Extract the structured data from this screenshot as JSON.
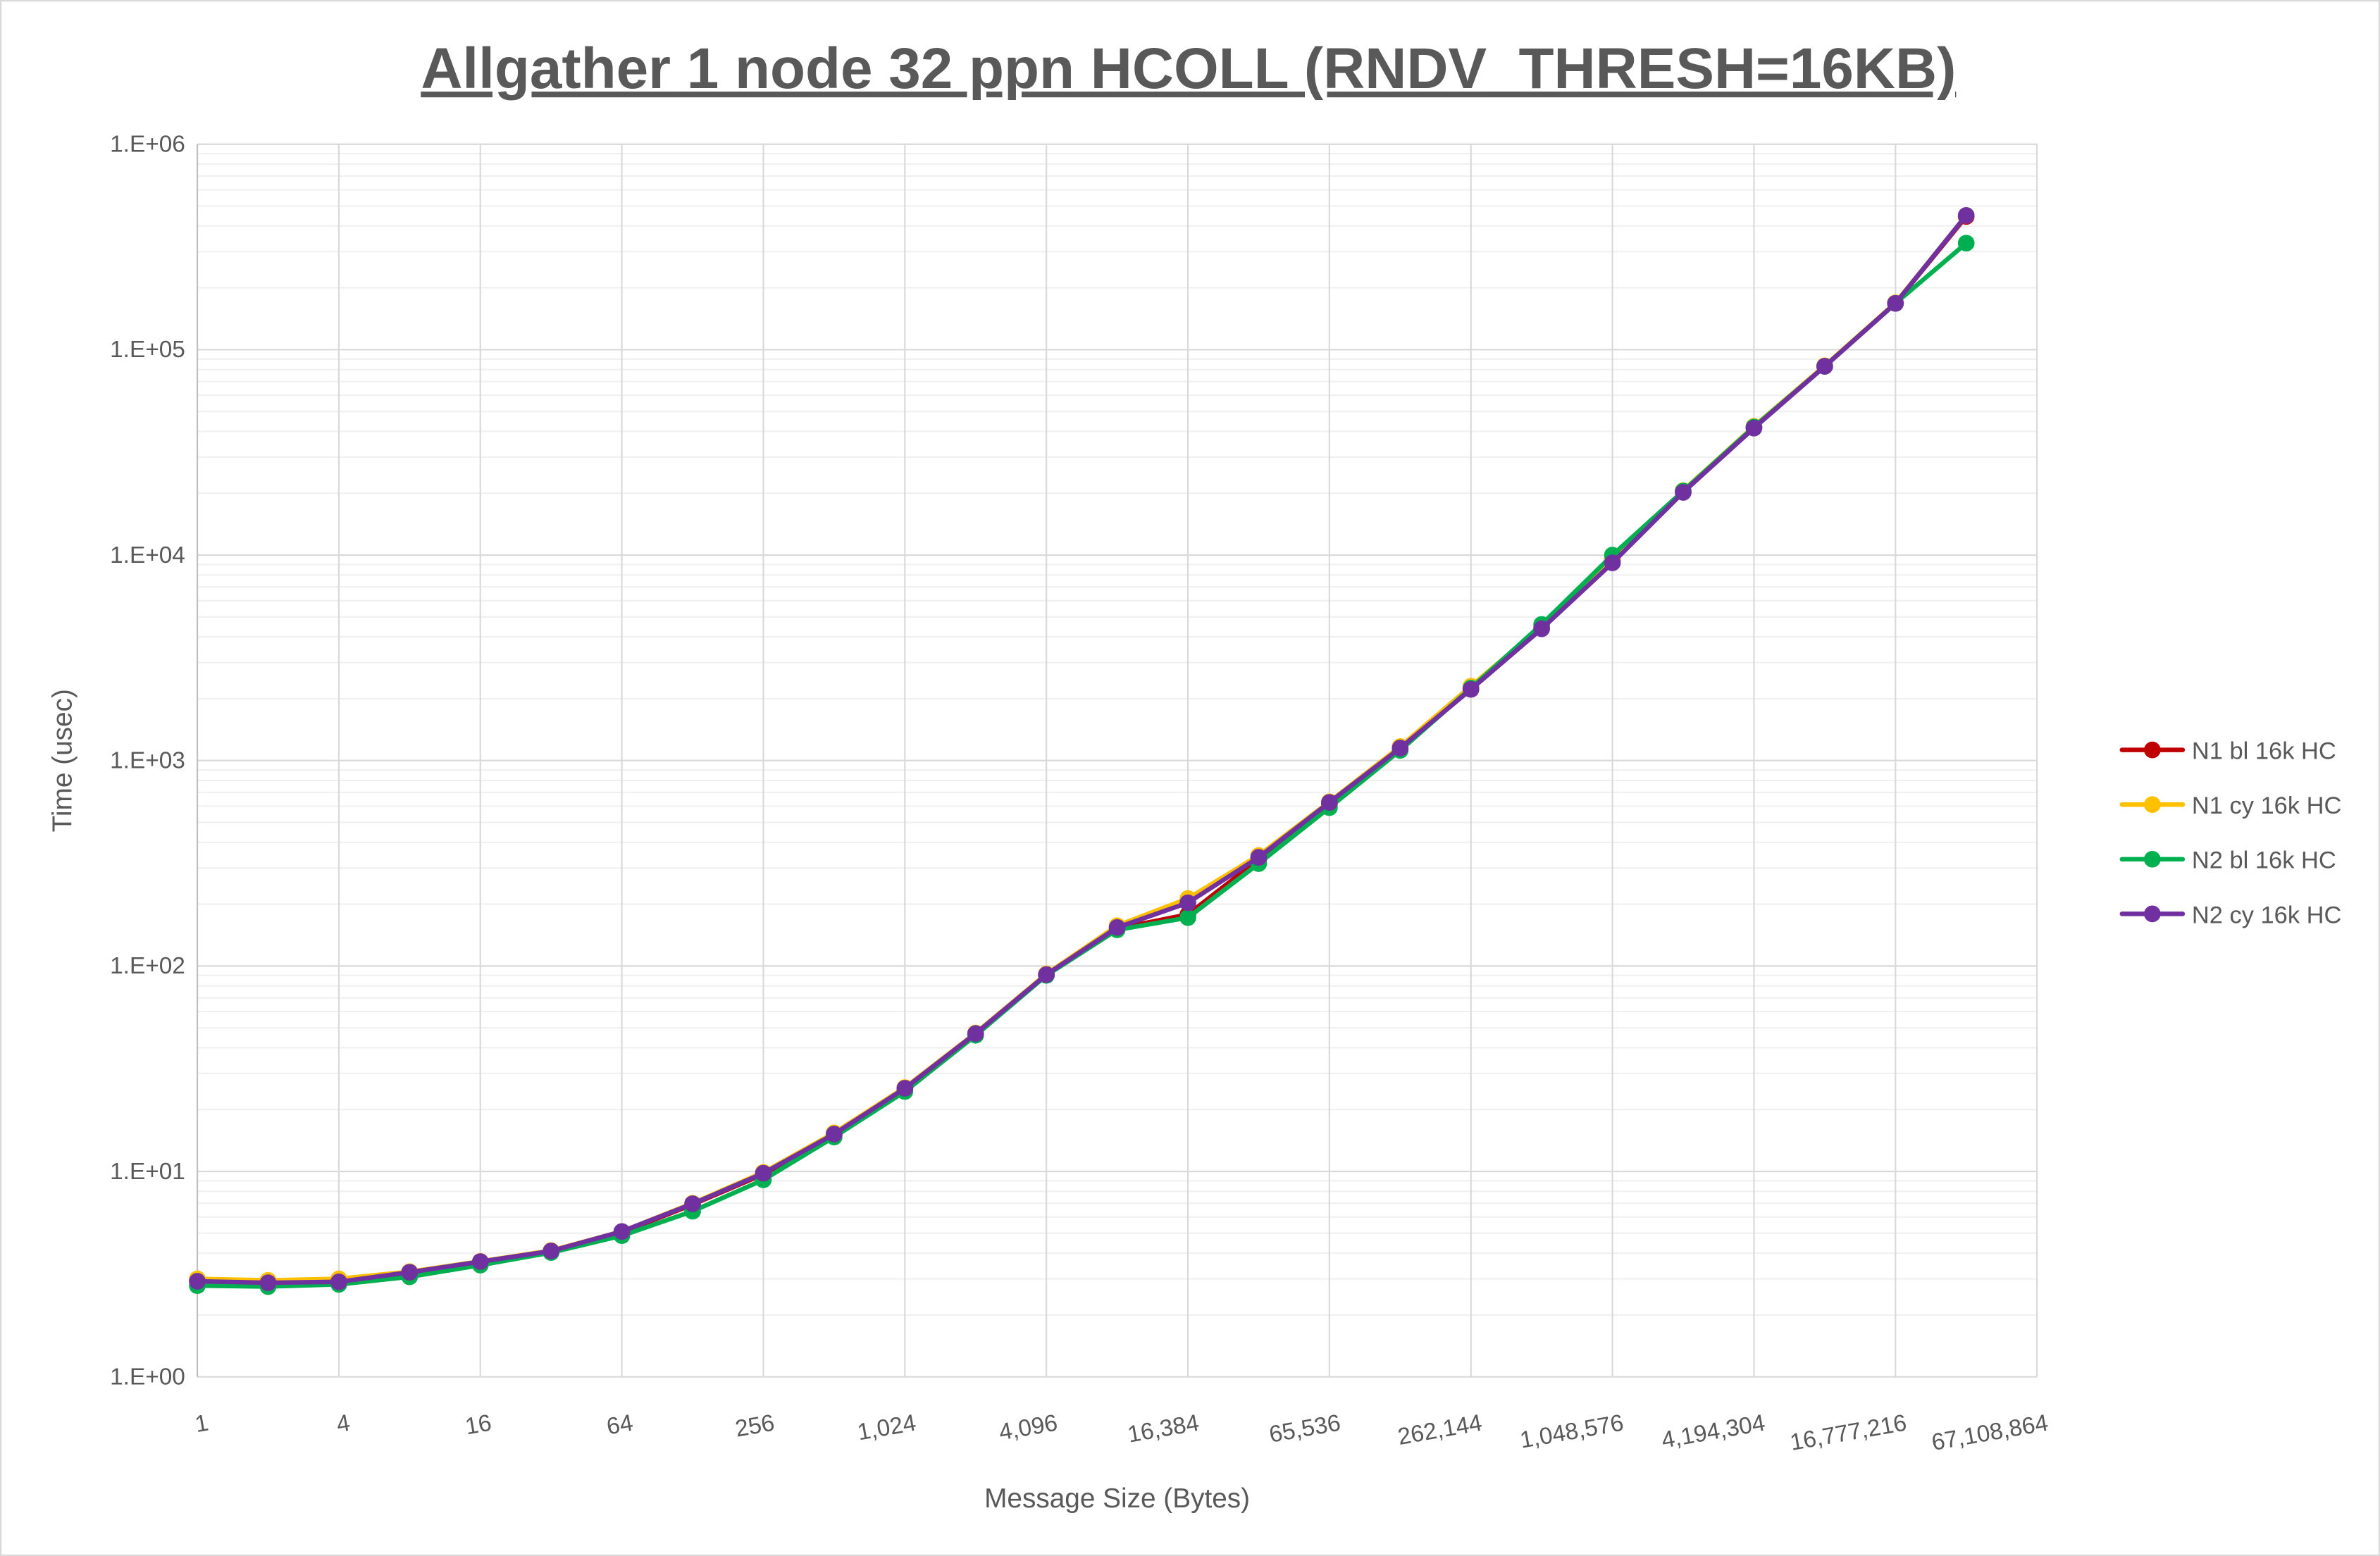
{
  "chart_data": {
    "type": "line",
    "title": "Allgather 1 node 32 ppn HCOLL (RNDV_THRESH=16KB)",
    "xlabel": "Message Size (Bytes)",
    "ylabel": "Time (usec)",
    "x_scale": "log2",
    "y_scale": "log10",
    "xlim": [
      1,
      67108864
    ],
    "ylim": [
      1,
      1000000
    ],
    "grid": true,
    "legend_position": "right",
    "x_tick_labels": [
      "1",
      "4",
      "16",
      "64",
      "256",
      "1,024",
      "4,096",
      "16,384",
      "65,536",
      "262,144",
      "1,048,576",
      "4,194,304",
      "16,777,216",
      "67,108,864"
    ],
    "y_tick_labels": [
      "1.E+00",
      "1.E+01",
      "1.E+02",
      "1.E+03",
      "1.E+04",
      "1.E+05",
      "1.E+06"
    ],
    "x": [
      1,
      2,
      4,
      8,
      16,
      32,
      64,
      128,
      256,
      512,
      1024,
      2048,
      4096,
      8192,
      16384,
      32768,
      65536,
      131072,
      262144,
      524288,
      1048576,
      2097152,
      4194304,
      8388608,
      16777216,
      33554432
    ],
    "series": [
      {
        "name": "N1 bl 16k HC",
        "color": "#C00000",
        "values": [
          2.95,
          2.85,
          2.9,
          3.2,
          3.6,
          4.08,
          5.05,
          6.9,
          9.7,
          15.1,
          25.2,
          46.5,
          90.5,
          152,
          178,
          330,
          615,
          1140,
          2250,
          4450,
          9500,
          20300,
          41800,
          83000,
          168000,
          445000
        ]
      },
      {
        "name": "N1 cy 16k HC",
        "color": "#FFC000",
        "values": [
          3.0,
          2.95,
          3.0,
          3.25,
          3.65,
          4.12,
          5.1,
          7.0,
          9.9,
          15.4,
          25.6,
          47.2,
          91.5,
          157,
          213,
          345,
          630,
          1170,
          2300,
          4500,
          9600,
          20600,
          42300,
          83500,
          169000,
          450000
        ]
      },
      {
        "name": "N2 bl 16k HC",
        "color": "#00B050",
        "values": [
          2.78,
          2.75,
          2.82,
          3.07,
          3.5,
          4.03,
          4.87,
          6.4,
          9.1,
          14.7,
          24.5,
          46,
          90,
          150,
          172,
          315,
          590,
          1120,
          2250,
          4600,
          10000,
          20500,
          42000,
          83000,
          168000,
          330000
        ]
      },
      {
        "name": "N2 cy 16k HC",
        "color": "#7030A0",
        "values": [
          2.92,
          2.87,
          2.9,
          3.23,
          3.64,
          4.1,
          5.1,
          6.96,
          9.8,
          15.2,
          25.4,
          46.9,
          90.8,
          154,
          203,
          338,
          625,
          1150,
          2220,
          4380,
          9170,
          20200,
          41500,
          83000,
          168000,
          450000
        ]
      }
    ]
  }
}
